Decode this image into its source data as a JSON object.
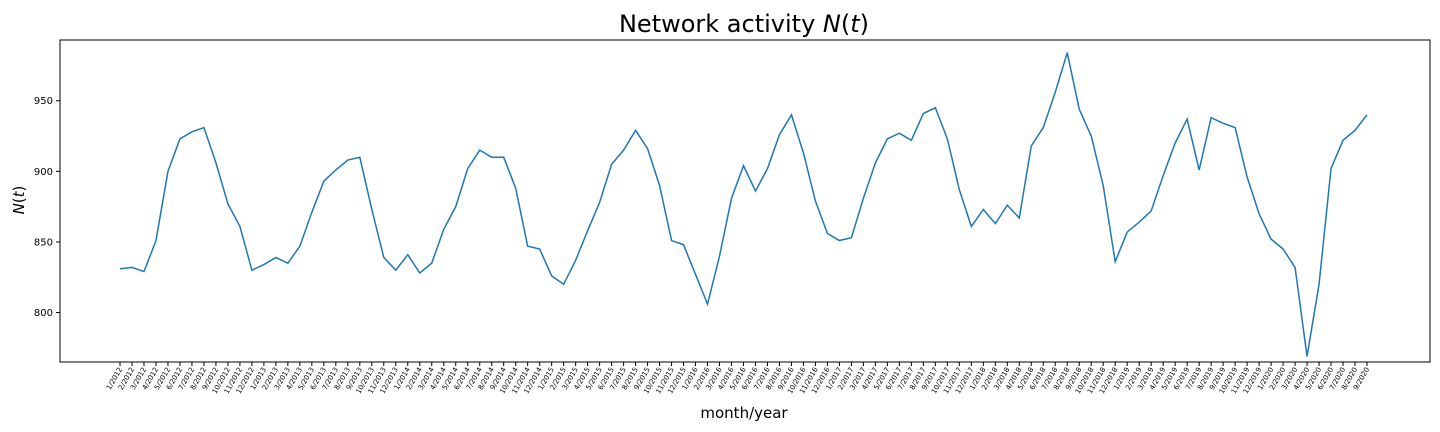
{
  "chart_data": {
    "type": "line",
    "title": "Network activity N(t)",
    "xlabel": "month/year",
    "ylabel": "N(t)",
    "ylim": [
      765,
      993
    ],
    "yticks": [
      800,
      850,
      900,
      950
    ],
    "grid": false,
    "line_color": "#1f77b4",
    "x": [
      "1/2012",
      "2/2012",
      "3/2012",
      "4/2012",
      "5/2012",
      "6/2012",
      "7/2012",
      "8/2012",
      "9/2012",
      "10/2012",
      "11/2012",
      "12/2012",
      "1/2013",
      "2/2013",
      "3/2013",
      "4/2013",
      "5/2013",
      "6/2013",
      "7/2013",
      "8/2013",
      "9/2013",
      "10/2013",
      "11/2013",
      "12/2013",
      "1/2014",
      "2/2014",
      "3/2014",
      "4/2014",
      "5/2014",
      "6/2014",
      "7/2014",
      "8/2014",
      "9/2014",
      "10/2014",
      "11/2014",
      "12/2014",
      "1/2015",
      "2/2015",
      "3/2015",
      "4/2015",
      "5/2015",
      "6/2015",
      "7/2015",
      "8/2015",
      "9/2015",
      "10/2015",
      "11/2015",
      "12/2015",
      "1/2016",
      "2/2016",
      "3/2016",
      "4/2016",
      "5/2016",
      "6/2016",
      "7/2016",
      "8/2016",
      "9/2016",
      "10/2016",
      "11/2016",
      "12/2016",
      "1/2017",
      "2/2017",
      "3/2017",
      "4/2017",
      "5/2017",
      "6/2017",
      "7/2017",
      "8/2017",
      "9/2017",
      "10/2017",
      "11/2017",
      "12/2017",
      "1/2018",
      "2/2018",
      "3/2018",
      "4/2018",
      "5/2018",
      "6/2018",
      "7/2018",
      "8/2018",
      "9/2018",
      "10/2018",
      "11/2018",
      "12/2018",
      "1/2019",
      "2/2019",
      "3/2019",
      "4/2019",
      "5/2019",
      "6/2019",
      "7/2019",
      "8/2019",
      "9/2019",
      "10/2019",
      "11/2019",
      "12/2019",
      "1/2020",
      "2/2020",
      "3/2020",
      "4/2020",
      "5/2020",
      "6/2020",
      "7/2020",
      "8/2020",
      "9/2020"
    ],
    "values": [
      831,
      832,
      829,
      851,
      900,
      923,
      928,
      931,
      906,
      877,
      861,
      830,
      834,
      839,
      835,
      847,
      871,
      893,
      901,
      908,
      910,
      873,
      839,
      830,
      841,
      828,
      835,
      859,
      875,
      902,
      915,
      910,
      910,
      888,
      847,
      845,
      826,
      820,
      837,
      858,
      878,
      905,
      915,
      929,
      916,
      890,
      851,
      848,
      827,
      806,
      840,
      881,
      904,
      886,
      902,
      926,
      940,
      913,
      879,
      856,
      851,
      853,
      881,
      906,
      923,
      927,
      922,
      941,
      945,
      923,
      887,
      861,
      873,
      863,
      876,
      867,
      918,
      931,
      956,
      984,
      944,
      925,
      890,
      836,
      857,
      864,
      872,
      897,
      920,
      937,
      901,
      938,
      934,
      931,
      896,
      870,
      852,
      845,
      832,
      769,
      820,
      902,
      922,
      929,
      940
    ]
  }
}
